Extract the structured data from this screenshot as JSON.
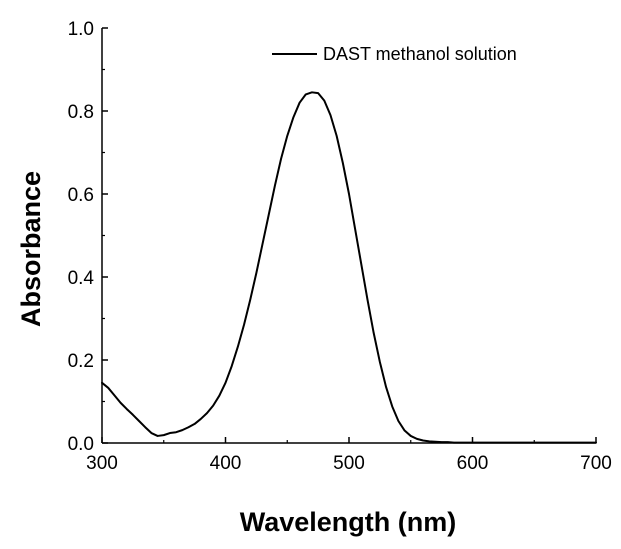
{
  "chart_data": {
    "type": "line",
    "xlabel": "Wavelength (nm)",
    "ylabel": "Absorbance",
    "xlim": [
      300,
      700
    ],
    "ylim": [
      0.0,
      1.0
    ],
    "x_ticks": [
      300,
      400,
      500,
      600,
      700
    ],
    "x_tick_labels": [
      "300",
      "400",
      "500",
      "600",
      "700"
    ],
    "y_ticks": [
      0.0,
      0.2,
      0.4,
      0.6,
      0.8,
      1.0
    ],
    "y_tick_labels": [
      "0.0",
      "0.2",
      "0.4",
      "0.6",
      "0.8",
      "1.0"
    ],
    "grid": false,
    "legend_position": "top-right",
    "series": [
      {
        "name": "DAST methanol solution",
        "color": "#000000",
        "x": [
          300,
          305,
          310,
          315,
          320,
          325,
          330,
          335,
          340,
          345,
          350,
          355,
          360,
          365,
          370,
          375,
          380,
          385,
          390,
          395,
          400,
          405,
          410,
          415,
          420,
          425,
          430,
          435,
          440,
          445,
          450,
          455,
          460,
          465,
          470,
          475,
          480,
          485,
          490,
          495,
          500,
          505,
          510,
          515,
          520,
          525,
          530,
          535,
          540,
          545,
          550,
          555,
          560,
          565,
          570,
          575,
          580,
          585,
          590,
          600,
          620,
          650,
          700
        ],
        "y": [
          0.145,
          0.133,
          0.115,
          0.097,
          0.082,
          0.068,
          0.053,
          0.038,
          0.024,
          0.017,
          0.019,
          0.024,
          0.026,
          0.031,
          0.038,
          0.046,
          0.058,
          0.072,
          0.09,
          0.114,
          0.145,
          0.185,
          0.232,
          0.285,
          0.345,
          0.41,
          0.48,
          0.55,
          0.62,
          0.685,
          0.74,
          0.785,
          0.82,
          0.84,
          0.845,
          0.843,
          0.825,
          0.79,
          0.74,
          0.675,
          0.6,
          0.515,
          0.43,
          0.345,
          0.265,
          0.195,
          0.135,
          0.088,
          0.053,
          0.03,
          0.017,
          0.01,
          0.006,
          0.004,
          0.003,
          0.002,
          0.002,
          0.001,
          0.001,
          0.001,
          0.001,
          0.001,
          0.001
        ]
      }
    ]
  }
}
